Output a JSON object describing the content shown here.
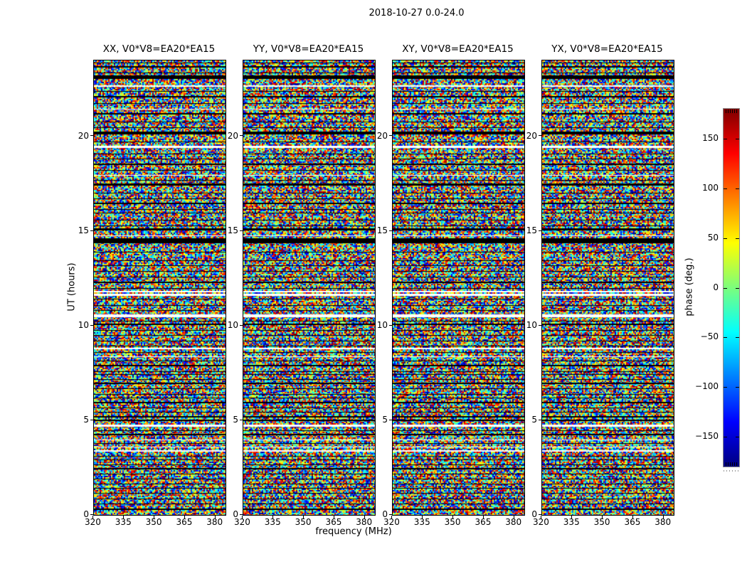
{
  "figure": {
    "title": "2018-10-27 0.0-24.0"
  },
  "chart_data": {
    "type": "heatmap",
    "title": "2018-10-27 0.0-24.0",
    "xlabel": "frequency (MHz)",
    "ylabel": "UT (hours)",
    "xlim": [
      320.2,
      385.0
    ],
    "ylim": [
      0,
      24
    ],
    "x_ticks": [
      320,
      335,
      350,
      365,
      380
    ],
    "y_ticks": [
      0,
      5,
      10,
      15,
      20
    ],
    "grid": false,
    "panels": [
      {
        "label": "XX, V0*V8=EA20*EA15"
      },
      {
        "label": "YY, V0*V8=EA20*EA15"
      },
      {
        "label": "XY, V0*V8=EA20*EA15"
      },
      {
        "label": "YX, V0*V8=EA20*EA15"
      }
    ],
    "values_description": "per-panel pseudo-random visibility phase noise spanning -180..180 deg (jet colormap), with flagged time rows shown black and missing time rows shown white; stripe pattern shared across all four polarization panels",
    "stripes": [
      [
        23.9,
        1,
        "k"
      ],
      [
        23.66,
        2,
        "k"
      ],
      [
        23.36,
        1,
        "k"
      ],
      [
        23.14,
        5,
        "k"
      ],
      [
        22.65,
        2,
        "w"
      ],
      [
        22.4,
        1,
        "k"
      ],
      [
        22.08,
        2,
        "k"
      ],
      [
        21.75,
        1,
        "k"
      ],
      [
        21.45,
        1,
        "w"
      ],
      [
        21.2,
        2,
        "k"
      ],
      [
        20.77,
        1,
        "k"
      ],
      [
        20.47,
        1,
        "k"
      ],
      [
        20.17,
        4,
        "k"
      ],
      [
        19.7,
        1,
        "k"
      ],
      [
        19.45,
        3,
        "w"
      ],
      [
        19.08,
        1,
        "k"
      ],
      [
        18.8,
        1,
        "k"
      ],
      [
        18.5,
        2,
        "k"
      ],
      [
        18.2,
        1,
        "k"
      ],
      [
        17.95,
        1,
        "w"
      ],
      [
        17.7,
        1,
        "k"
      ],
      [
        17.45,
        3,
        "k"
      ],
      [
        17.0,
        1,
        "k"
      ],
      [
        16.7,
        1,
        "k"
      ],
      [
        16.45,
        2,
        "k"
      ],
      [
        16.15,
        1,
        "k"
      ],
      [
        15.96,
        1,
        "k"
      ],
      [
        15.6,
        1,
        "k"
      ],
      [
        15.3,
        1,
        "k"
      ],
      [
        15.1,
        3,
        "k"
      ],
      [
        14.76,
        1,
        "w"
      ],
      [
        14.6,
        1,
        "k"
      ],
      [
        14.46,
        6,
        "k"
      ],
      [
        13.9,
        1,
        "k"
      ],
      [
        13.45,
        1,
        "k"
      ],
      [
        13.2,
        1,
        "k"
      ],
      [
        12.9,
        1,
        "k"
      ],
      [
        12.58,
        1,
        "k"
      ],
      [
        12.3,
        2,
        "k"
      ],
      [
        12.0,
        1,
        "k"
      ],
      [
        11.8,
        2,
        "w"
      ],
      [
        11.64,
        3,
        "w"
      ],
      [
        11.4,
        1,
        "k"
      ],
      [
        11.08,
        1,
        "k"
      ],
      [
        10.8,
        1,
        "k"
      ],
      [
        10.5,
        4,
        "w"
      ],
      [
        10.25,
        1,
        "k"
      ],
      [
        10.07,
        2,
        "k"
      ],
      [
        9.77,
        1,
        "k"
      ],
      [
        9.5,
        1,
        "k"
      ],
      [
        9.2,
        1,
        "k"
      ],
      [
        8.94,
        1,
        "k"
      ],
      [
        8.8,
        2,
        "w"
      ],
      [
        8.6,
        1,
        "k"
      ],
      [
        8.38,
        1,
        "w"
      ],
      [
        8.15,
        1,
        "k"
      ],
      [
        7.9,
        2,
        "k"
      ],
      [
        7.6,
        1,
        "k"
      ],
      [
        7.44,
        1,
        "k"
      ],
      [
        7.17,
        1,
        "k"
      ],
      [
        6.95,
        2,
        "k"
      ],
      [
        6.7,
        1,
        "k"
      ],
      [
        6.4,
        1,
        "k"
      ],
      [
        6.2,
        1,
        "k"
      ],
      [
        5.93,
        2,
        "k"
      ],
      [
        5.67,
        1,
        "k"
      ],
      [
        5.45,
        1,
        "k"
      ],
      [
        5.18,
        2,
        "k"
      ],
      [
        5.0,
        2,
        "k"
      ],
      [
        4.73,
        3,
        "w"
      ],
      [
        4.47,
        1,
        "k"
      ],
      [
        4.24,
        2,
        "k"
      ],
      [
        4.0,
        1,
        "w"
      ],
      [
        3.79,
        1,
        "k"
      ],
      [
        3.6,
        1,
        "w"
      ],
      [
        3.38,
        2,
        "w"
      ],
      [
        3.12,
        1,
        "k"
      ],
      [
        2.93,
        1,
        "k"
      ],
      [
        2.67,
        1,
        "k"
      ],
      [
        2.44,
        2,
        "k"
      ],
      [
        2.18,
        1,
        "k"
      ],
      [
        1.92,
        1,
        "k"
      ],
      [
        1.65,
        1,
        "k"
      ],
      [
        1.43,
        1,
        "k"
      ],
      [
        1.16,
        1,
        "k"
      ],
      [
        0.86,
        1,
        "k"
      ],
      [
        0.6,
        1,
        "k"
      ],
      [
        0.3,
        2,
        "k"
      ]
    ],
    "colorbar": {
      "label": "phase (deg.)",
      "min": -180,
      "max": 180,
      "ticks": [
        150,
        100,
        50,
        0,
        -50,
        -100,
        -150
      ],
      "colormap": "jet",
      "gradient_stops_bottom_to_top": [
        {
          "pos": 0.0,
          "color": "#00007f"
        },
        {
          "pos": 0.125,
          "color": "#0000ff"
        },
        {
          "pos": 0.375,
          "color": "#00ffff"
        },
        {
          "pos": 0.5,
          "color": "#7cfe7c"
        },
        {
          "pos": 0.625,
          "color": "#ffff00"
        },
        {
          "pos": 0.875,
          "color": "#ff0000"
        },
        {
          "pos": 1.0,
          "color": "#7f0000"
        }
      ]
    }
  }
}
